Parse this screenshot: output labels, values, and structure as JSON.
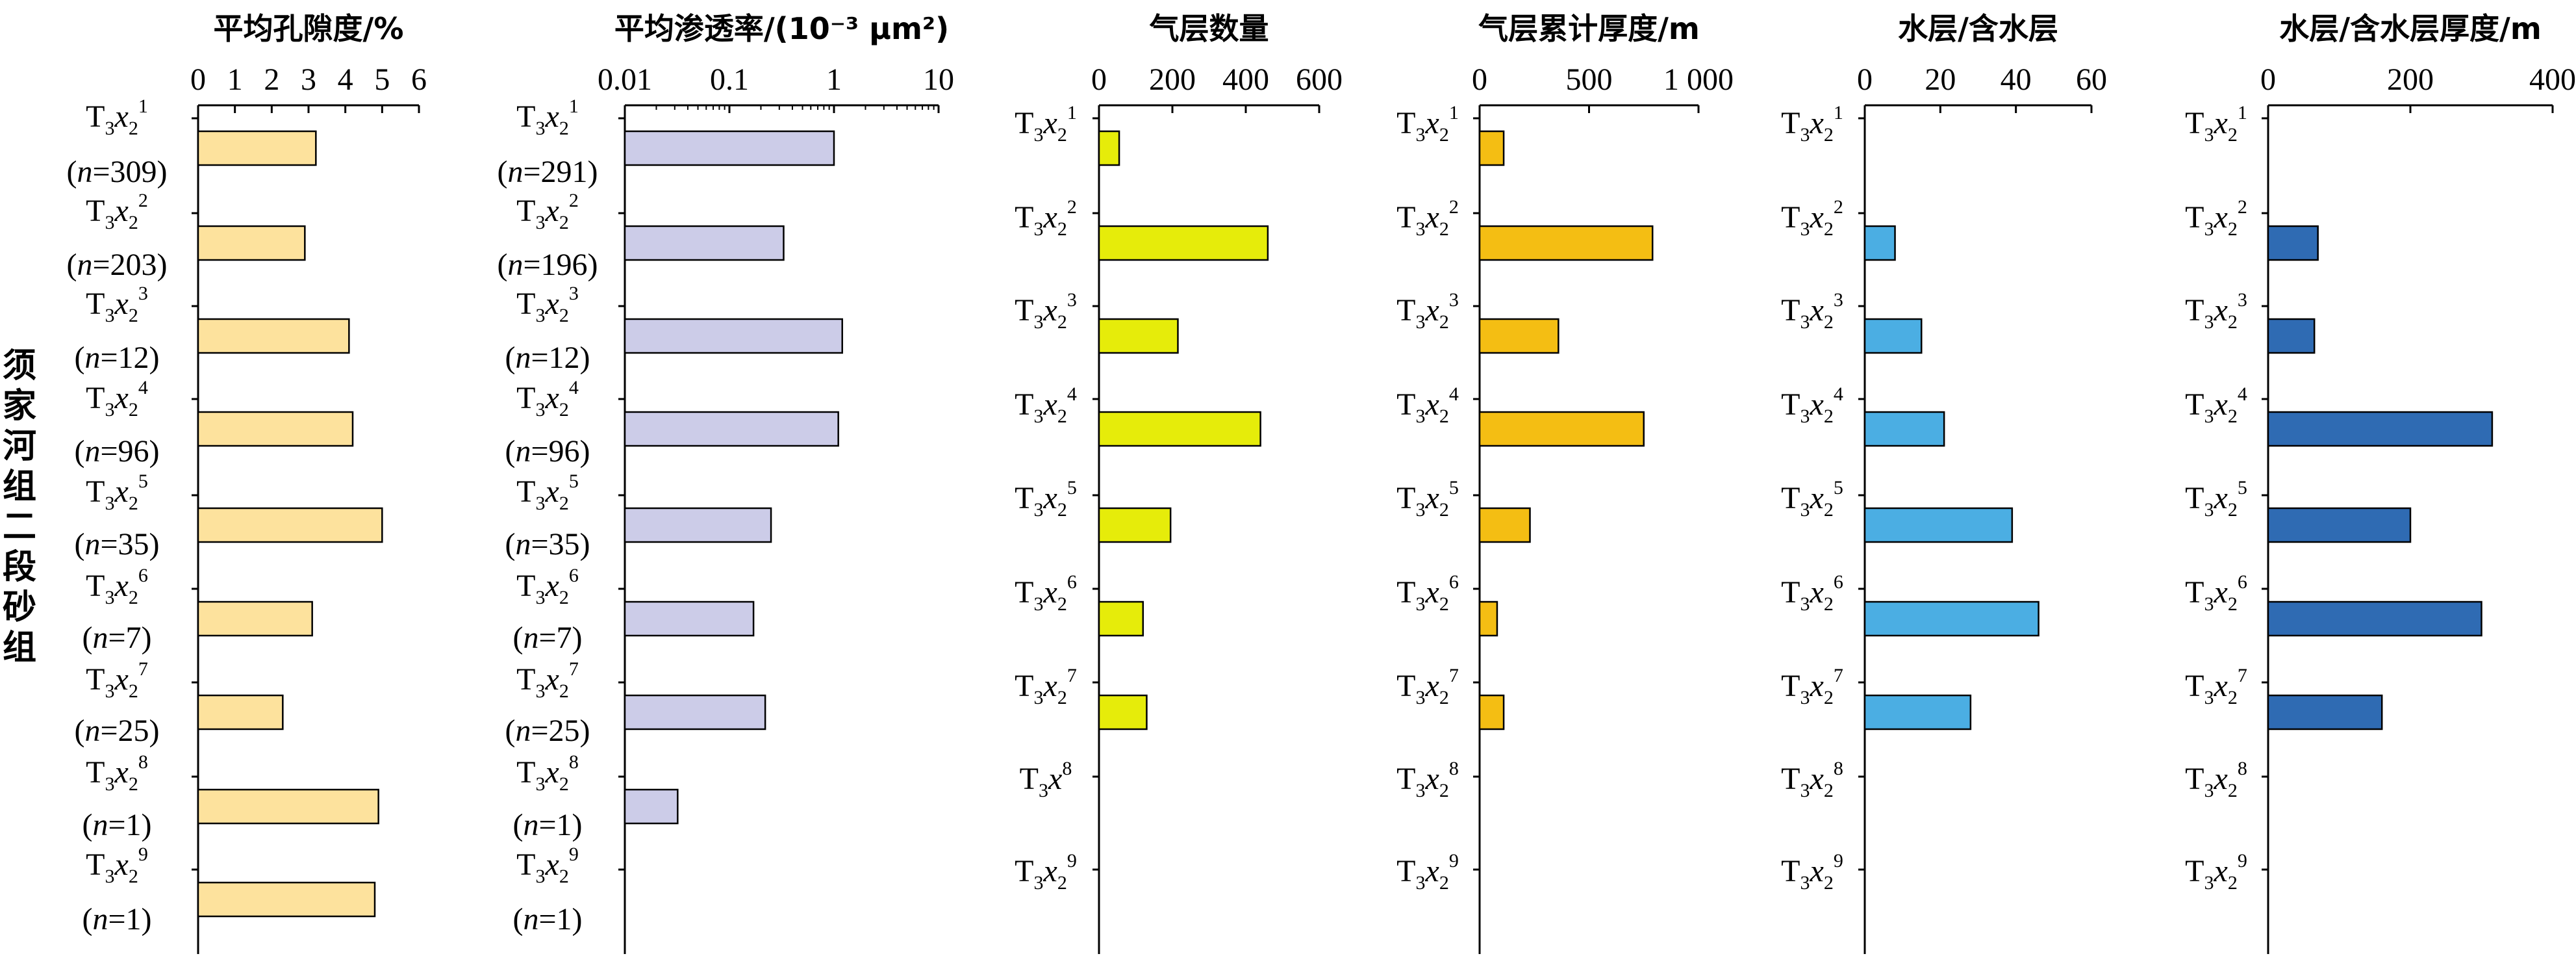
{
  "row_label": "须家河组二段砂组",
  "chart_data": [
    {
      "type": "bar",
      "title": "平均孔隙度/%",
      "scale": "linear",
      "xlim": [
        0,
        6
      ],
      "ticks": [
        0,
        1,
        2,
        3,
        4,
        5,
        6
      ],
      "tick_labels": [
        "0",
        "1",
        "2",
        "3",
        "4",
        "5",
        "6"
      ],
      "fill": "#FDE29D",
      "categories": [
        "T3x2 1",
        "T3x2 2",
        "T3x2 3",
        "T3x2 4",
        "T3x2 5",
        "T3x2 6",
        "T3x2 7",
        "T3x2 8",
        "T3x2 9"
      ],
      "n_labels": [
        "(n=309)",
        "(n=203)",
        "(n=12)",
        "(n=96)",
        "(n=35)",
        "(n=7)",
        "(n=25)",
        "(n=1)",
        "(n=1)"
      ],
      "values": [
        3.2,
        2.9,
        4.1,
        4.2,
        5.0,
        3.1,
        2.3,
        4.9,
        4.8
      ]
    },
    {
      "type": "bar",
      "title": "平均渗透率/(10⁻³ μm²)",
      "scale": "log",
      "xlim": [
        0.01,
        10
      ],
      "ticks": [
        0.01,
        0.1,
        1,
        10
      ],
      "tick_labels": [
        "0.01",
        "0.1",
        "1",
        "10"
      ],
      "fill": "#CCCCE8",
      "categories": [
        "T3x2 1",
        "T3x2 2",
        "T3x2 3",
        "T3x2 4",
        "T3x2 5",
        "T3x2 6",
        "T3x2 7",
        "T3x2 8",
        "T3x2 9"
      ],
      "n_labels": [
        "(n=291)",
        "(n=196)",
        "(n=12)",
        "(n=96)",
        "(n=35)",
        "(n=7)",
        "(n=25)",
        "(n=1)",
        "(n=1)"
      ],
      "values": [
        1.0,
        0.33,
        1.2,
        1.1,
        0.25,
        0.17,
        0.22,
        0.032,
        null
      ]
    },
    {
      "type": "bar",
      "title": "气层数量",
      "scale": "linear",
      "xlim": [
        0,
        600
      ],
      "ticks": [
        0,
        200,
        400,
        600
      ],
      "tick_labels": [
        "0",
        "200",
        "400",
        "600"
      ],
      "fill": "#E6EC0A",
      "categories": [
        "T3x2 1",
        "T3x2 2",
        "T3x2 3",
        "T3x2 4",
        "T3x2 5",
        "T3x2 6",
        "T3x2 7",
        "T3x8",
        "T3x2 9"
      ],
      "values": [
        55,
        460,
        215,
        440,
        195,
        120,
        130,
        null,
        null
      ]
    },
    {
      "type": "bar",
      "title": "气层累计厚度/m",
      "scale": "linear",
      "xlim": [
        0,
        1000
      ],
      "ticks": [
        0,
        500,
        1000
      ],
      "tick_labels": [
        "0",
        "500",
        "1 000"
      ],
      "fill": "#F4BE13",
      "categories": [
        "T3x2 1",
        "T3x2 2",
        "T3x2 3",
        "T3x2 4",
        "T3x2 5",
        "T3x2 6",
        "T3x2 7",
        "T3x2 8",
        "T3x2 9"
      ],
      "values": [
        110,
        790,
        360,
        750,
        230,
        80,
        110,
        null,
        null
      ]
    },
    {
      "type": "bar",
      "title": "水层/含水层",
      "scale": "linear",
      "xlim": [
        0,
        60
      ],
      "ticks": [
        0,
        20,
        40,
        60
      ],
      "tick_labels": [
        "0",
        "20",
        "40",
        "60"
      ],
      "fill": "#4BAEE3",
      "categories": [
        "T3x2 1",
        "T3x2 2",
        "T3x2 3",
        "T3x2 4",
        "T3x2 5",
        "T3x2 6",
        "T3x2 7",
        "T3x2 8",
        "T3x2 9"
      ],
      "values": [
        null,
        8,
        15,
        21,
        39,
        46,
        28,
        null,
        null
      ]
    },
    {
      "type": "bar",
      "title": "水层/含水层厚度/m",
      "scale": "linear",
      "xlim": [
        0,
        400
      ],
      "ticks": [
        0,
        200,
        400
      ],
      "tick_labels": [
        "0",
        "200",
        "400"
      ],
      "fill": "#2F6BB3",
      "categories": [
        "T3x2 1",
        "T3x2 2",
        "T3x2 3",
        "T3x2 4",
        "T3x2 5",
        "T3x2 6",
        "T3x2 7",
        "T3x2 8",
        "T3x2 9"
      ],
      "values": [
        null,
        70,
        65,
        315,
        200,
        300,
        160,
        null,
        null
      ]
    }
  ]
}
